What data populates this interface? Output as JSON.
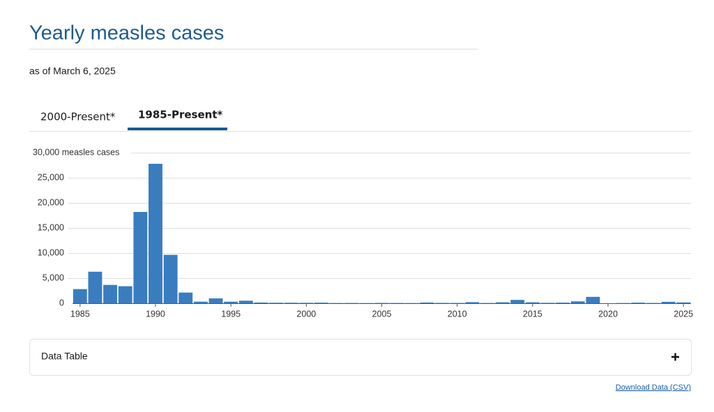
{
  "header": {
    "title": "Yearly measles cases",
    "subtitle": "as of March 6, 2025"
  },
  "tabs": [
    {
      "label": "2000-Present*",
      "active": false
    },
    {
      "label": "1985-Present*",
      "active": true
    }
  ],
  "chart_data": {
    "type": "bar",
    "x": [
      1985,
      1986,
      1987,
      1988,
      1989,
      1990,
      1991,
      1992,
      1993,
      1994,
      1995,
      1996,
      1997,
      1998,
      1999,
      2000,
      2001,
      2002,
      2003,
      2004,
      2005,
      2006,
      2007,
      2008,
      2009,
      2010,
      2011,
      2012,
      2013,
      2014,
      2015,
      2016,
      2017,
      2018,
      2019,
      2020,
      2021,
      2022,
      2023,
      2024,
      2025
    ],
    "values": [
      2822,
      6282,
      3655,
      3396,
      18193,
      27786,
      9643,
      2126,
      312,
      963,
      309,
      508,
      138,
      100,
      100,
      86,
      116,
      44,
      56,
      37,
      66,
      55,
      43,
      140,
      71,
      63,
      220,
      55,
      187,
      667,
      188,
      86,
      120,
      375,
      1274,
      13,
      49,
      121,
      59,
      285,
      164
    ],
    "color": "#3a7dbf",
    "xlim": [
      1984.5,
      2025.5
    ],
    "xticks": [
      1985,
      1990,
      1995,
      2000,
      2005,
      2010,
      2015,
      2020,
      2025
    ],
    "ylim": [
      0,
      30000
    ],
    "yticks": [
      0,
      {
        "value": 5000,
        "label": "5,000"
      },
      {
        "value": 10000,
        "label": "10,000"
      },
      {
        "value": 15000,
        "label": "15,000"
      },
      {
        "value": 20000,
        "label": "20,000"
      },
      {
        "value": 25000,
        "label": "25,000"
      },
      {
        "value": 30000,
        "label": "30,000 measles cases"
      }
    ],
    "grid": true
  },
  "data_table": {
    "label": "Data Table"
  },
  "download": {
    "label": "Download Data (CSV)"
  }
}
